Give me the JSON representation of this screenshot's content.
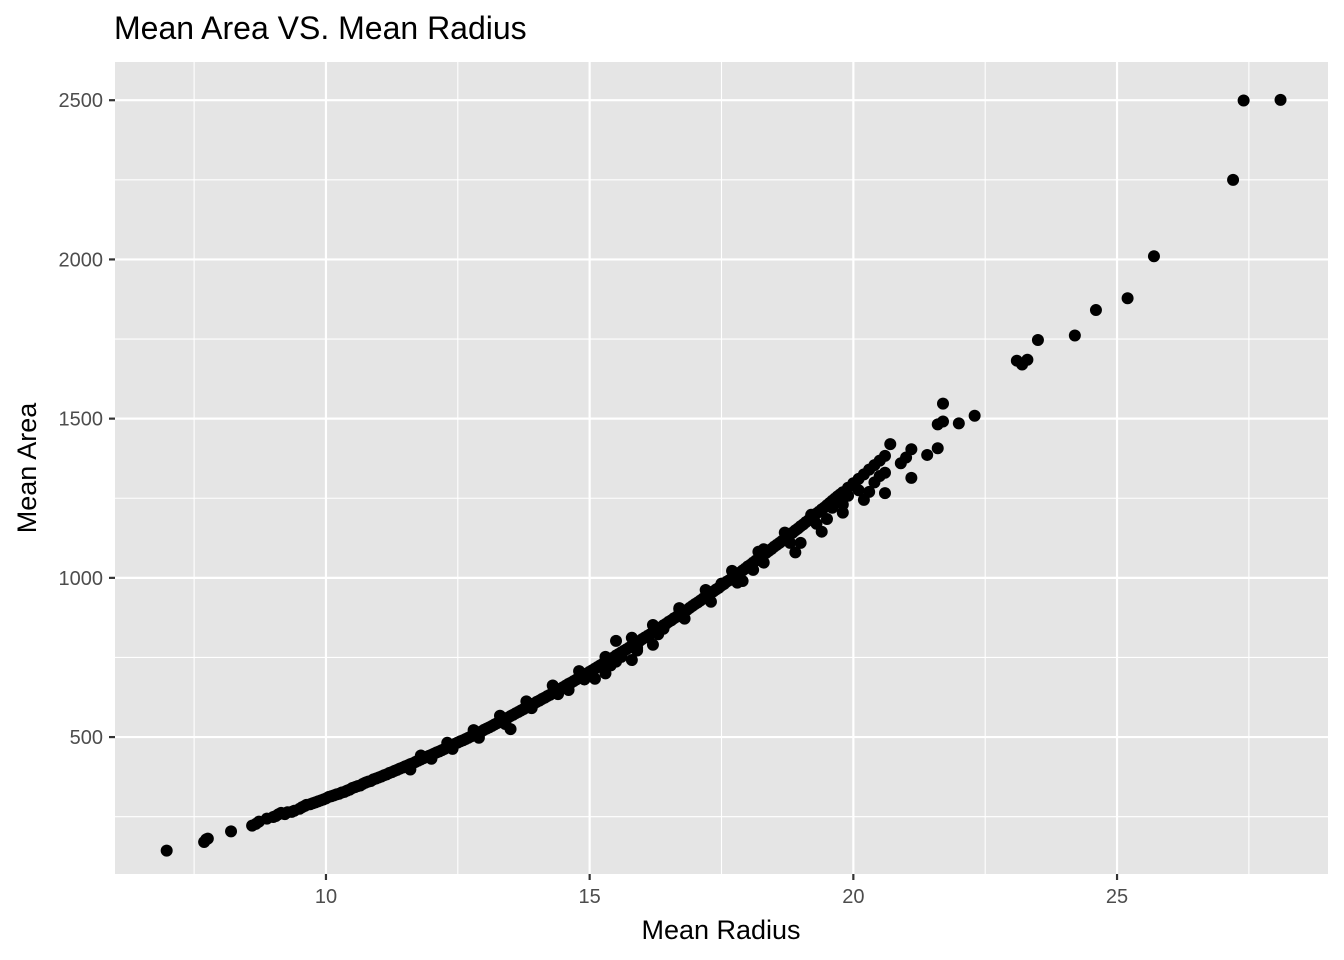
{
  "chart_data": {
    "type": "scatter",
    "title": "Mean Area VS. Mean Radius",
    "xlabel": "Mean Radius",
    "ylabel": "Mean Area",
    "xlim": [
      6.0,
      29.0
    ],
    "ylim": [
      70,
      2620
    ],
    "x_ticks": [
      10,
      15,
      20,
      25
    ],
    "y_ticks": [
      500,
      1000,
      1500,
      2000,
      2500
    ],
    "x_tick_labels": [
      "10",
      "15",
      "20",
      "25"
    ],
    "y_tick_labels": [
      "500",
      "1000",
      "1500",
      "2000",
      "2500"
    ],
    "grid": true,
    "background": "#e5e5e5",
    "point_color": "#000000",
    "points": [
      [
        6.98,
        143.5
      ],
      [
        7.69,
        170.4
      ],
      [
        7.73,
        178.8
      ],
      [
        7.76,
        181.0
      ],
      [
        8.2,
        203.9
      ],
      [
        8.6,
        221.8
      ],
      [
        8.67,
        227.2
      ],
      [
        8.73,
        234.3
      ],
      [
        8.88,
        244.0
      ],
      [
        9.0,
        249.1
      ],
      [
        9.1,
        257.8
      ],
      [
        9.27,
        264.0
      ],
      [
        9.4,
        268.8
      ],
      [
        9.5,
        275.0
      ],
      [
        9.6,
        284.0
      ],
      [
        9.7,
        289.0
      ],
      [
        9.8,
        295.0
      ],
      [
        9.9,
        301.0
      ],
      [
        10.0,
        307.3
      ],
      [
        10.1,
        314.0
      ],
      [
        10.2,
        320.0
      ],
      [
        10.3,
        326.0
      ],
      [
        10.4,
        332.0
      ],
      [
        10.5,
        340.0
      ],
      [
        10.6,
        346.0
      ],
      [
        10.7,
        353.0
      ],
      [
        10.8,
        360.0
      ],
      [
        10.9,
        367.0
      ],
      [
        11.0,
        373.0
      ],
      [
        11.1,
        380.0
      ],
      [
        11.2,
        387.0
      ],
      [
        11.3,
        394.0
      ],
      [
        11.4,
        401.0
      ],
      [
        11.5,
        408.0
      ],
      [
        11.6,
        415.0
      ],
      [
        11.7,
        422.0
      ],
      [
        11.8,
        430.0
      ],
      [
        11.9,
        437.0
      ],
      [
        12.0,
        444.0
      ],
      [
        12.1,
        452.0
      ],
      [
        12.2,
        459.0
      ],
      [
        12.3,
        467.0
      ],
      [
        12.4,
        475.0
      ],
      [
        12.5,
        483.0
      ],
      [
        12.6,
        490.0
      ],
      [
        12.7,
        498.0
      ],
      [
        12.8,
        506.0
      ],
      [
        12.9,
        514.0
      ],
      [
        13.0,
        523.0
      ],
      [
        13.1,
        531.0
      ],
      [
        13.2,
        540.0
      ],
      [
        13.3,
        548.0
      ],
      [
        13.4,
        557.0
      ],
      [
        13.5,
        566.0
      ],
      [
        13.6,
        575.0
      ],
      [
        13.7,
        584.0
      ],
      [
        13.8,
        593.0
      ],
      [
        13.9,
        602.0
      ],
      [
        14.0,
        611.0
      ],
      [
        14.1,
        620.0
      ],
      [
        14.2,
        629.0
      ],
      [
        14.3,
        638.0
      ],
      [
        14.4,
        648.0
      ],
      [
        14.5,
        657.0
      ],
      [
        14.6,
        667.0
      ],
      [
        14.7,
        676.0
      ],
      [
        14.8,
        686.0
      ],
      [
        14.9,
        696.0
      ],
      [
        15.0,
        705.0
      ],
      [
        15.1,
        715.0
      ],
      [
        15.2,
        725.0
      ],
      [
        15.3,
        735.0
      ],
      [
        15.4,
        745.0
      ],
      [
        15.5,
        756.0
      ],
      [
        15.6,
        766.0
      ],
      [
        15.7,
        776.0
      ],
      [
        15.8,
        787.0
      ],
      [
        15.9,
        797.0
      ],
      [
        16.0,
        808.0
      ],
      [
        16.1,
        818.0
      ],
      [
        16.2,
        829.0
      ],
      [
        16.3,
        840.0
      ],
      [
        16.4,
        851.0
      ],
      [
        16.5,
        862.0
      ],
      [
        16.6,
        873.0
      ],
      [
        16.7,
        884.0
      ],
      [
        16.8,
        895.0
      ],
      [
        16.9,
        906.0
      ],
      [
        17.0,
        918.0
      ],
      [
        17.1,
        929.0
      ],
      [
        17.2,
        941.0
      ],
      [
        17.3,
        952.0
      ],
      [
        17.4,
        964.0
      ],
      [
        17.5,
        976.0
      ],
      [
        17.6,
        988.0
      ],
      [
        17.7,
        999.0
      ],
      [
        17.8,
        1011.0
      ],
      [
        17.9,
        1023.0
      ],
      [
        18.0,
        1036.0
      ],
      [
        18.1,
        1048.0
      ],
      [
        18.2,
        1060.0
      ],
      [
        18.3,
        1073.0
      ],
      [
        18.4,
        1085.0
      ],
      [
        18.5,
        1098.0
      ],
      [
        18.6,
        1110.0
      ],
      [
        18.7,
        1123.0
      ],
      [
        18.8,
        1136.0
      ],
      [
        18.9,
        1149.0
      ],
      [
        19.0,
        1162.0
      ],
      [
        19.1,
        1175.0
      ],
      [
        19.2,
        1188.0
      ],
      [
        19.3,
        1202.0
      ],
      [
        19.4,
        1215.0
      ],
      [
        19.5,
        1228.0
      ],
      [
        19.6,
        1242.0
      ],
      [
        19.7,
        1256.0
      ],
      [
        19.8,
        1269.0
      ],
      [
        19.9,
        1283.0
      ],
      [
        20.0,
        1297.0
      ],
      [
        20.1,
        1311.0
      ],
      [
        20.2,
        1325.0
      ],
      [
        20.3,
        1340.0
      ],
      [
        20.4,
        1354.0
      ],
      [
        20.5,
        1368.0
      ],
      [
        20.6,
        1383.0
      ],
      [
        10.05,
        312.0
      ],
      [
        10.25,
        322.0
      ],
      [
        10.45,
        335.0
      ],
      [
        10.65,
        348.0
      ],
      [
        10.85,
        362.0
      ],
      [
        11.05,
        376.0
      ],
      [
        11.25,
        390.0
      ],
      [
        11.45,
        404.0
      ],
      [
        11.65,
        418.0
      ],
      [
        11.85,
        434.0
      ],
      [
        12.05,
        448.0
      ],
      [
        12.25,
        463.0
      ],
      [
        12.45,
        479.0
      ],
      [
        12.65,
        494.0
      ],
      [
        12.85,
        510.0
      ],
      [
        13.05,
        527.0
      ],
      [
        13.25,
        544.0
      ],
      [
        13.45,
        561.0
      ],
      [
        13.65,
        579.0
      ],
      [
        13.85,
        597.0
      ],
      [
        14.05,
        615.0
      ],
      [
        14.25,
        633.0
      ],
      [
        14.45,
        652.0
      ],
      [
        14.65,
        671.0
      ],
      [
        14.85,
        690.0
      ],
      [
        15.05,
        710.0
      ],
      [
        15.25,
        730.0
      ],
      [
        15.45,
        750.0
      ],
      [
        15.65,
        771.0
      ],
      [
        15.85,
        792.0
      ],
      [
        16.05,
        813.0
      ],
      [
        16.25,
        834.0
      ],
      [
        16.45,
        856.0
      ],
      [
        16.65,
        878.0
      ],
      [
        16.85,
        900.0
      ],
      [
        17.05,
        923.0
      ],
      [
        17.25,
        946.0
      ],
      [
        17.45,
        969.0
      ],
      [
        17.65,
        993.0
      ],
      [
        17.85,
        1017.0
      ],
      [
        18.05,
        1041.0
      ],
      [
        18.25,
        1066.0
      ],
      [
        18.45,
        1091.0
      ],
      [
        18.65,
        1116.0
      ],
      [
        18.85,
        1142.0
      ],
      [
        19.05,
        1168.0
      ],
      [
        19.25,
        1195.0
      ],
      [
        19.45,
        1221.0
      ],
      [
        19.65,
        1249.0
      ],
      [
        9.15,
        262.0
      ],
      [
        9.35,
        265.0
      ],
      [
        9.55,
        280.0
      ],
      [
        9.75,
        292.0
      ],
      [
        9.95,
        304.0
      ],
      [
        9.05,
        252.0
      ],
      [
        9.22,
        258.0
      ],
      [
        9.63,
        287.0
      ],
      [
        9.85,
        298.0
      ],
      [
        10.15,
        317.0
      ],
      [
        10.35,
        328.0
      ],
      [
        10.55,
        343.0
      ],
      [
        10.75,
        357.0
      ],
      [
        10.95,
        370.0
      ],
      [
        11.15,
        383.0
      ],
      [
        11.35,
        397.0
      ],
      [
        11.55,
        411.0
      ],
      [
        11.75,
        426.0
      ],
      [
        11.95,
        441.0
      ],
      [
        12.15,
        455.0
      ],
      [
        12.35,
        471.0
      ],
      [
        12.55,
        487.0
      ],
      [
        12.75,
        502.0
      ],
      [
        12.95,
        518.0
      ],
      [
        13.15,
        535.0
      ],
      [
        13.35,
        552.0
      ],
      [
        13.55,
        570.0
      ],
      [
        13.75,
        588.0
      ],
      [
        13.95,
        606.0
      ],
      [
        14.15,
        624.0
      ],
      [
        14.35,
        643.0
      ],
      [
        14.55,
        662.0
      ],
      [
        14.75,
        681.0
      ],
      [
        14.95,
        700.0
      ],
      [
        15.15,
        720.0
      ],
      [
        15.35,
        740.0
      ],
      [
        15.55,
        761.0
      ],
      [
        15.75,
        781.0
      ],
      [
        15.95,
        802.0
      ],
      [
        16.15,
        823.0
      ],
      [
        16.35,
        845.0
      ],
      [
        16.55,
        867.0
      ],
      [
        16.75,
        889.0
      ],
      [
        16.95,
        912.0
      ],
      [
        17.15,
        935.0
      ],
      [
        17.35,
        958.0
      ],
      [
        17.55,
        981.0
      ],
      [
        17.75,
        1005.0
      ],
      [
        17.95,
        1029.0
      ],
      [
        18.15,
        1054.0
      ],
      [
        18.35,
        1079.0
      ],
      [
        18.55,
        1104.0
      ],
      [
        18.75,
        1129.0
      ],
      [
        18.95,
        1155.0
      ],
      [
        19.15,
        1181.0
      ],
      [
        19.35,
        1208.0
      ],
      [
        19.55,
        1235.0
      ],
      [
        19.75,
        1262.0
      ],
      [
        11.6,
        398.0
      ],
      [
        12.0,
        432.0
      ],
      [
        12.4,
        463.0
      ],
      [
        12.9,
        498.0
      ],
      [
        13.4,
        541.0
      ],
      [
        13.9,
        591.0
      ],
      [
        14.4,
        635.0
      ],
      [
        14.9,
        681.0
      ],
      [
        15.4,
        725.0
      ],
      [
        15.9,
        780.0
      ],
      [
        16.3,
        823.0
      ],
      [
        16.8,
        872.0
      ],
      [
        17.3,
        925.0
      ],
      [
        17.8,
        985.0
      ],
      [
        18.3,
        1048.0
      ],
      [
        18.8,
        1110.0
      ],
      [
        19.3,
        1170.0
      ],
      [
        19.8,
        1230.0
      ],
      [
        11.8,
        442.0
      ],
      [
        12.3,
        482.0
      ],
      [
        12.8,
        522.0
      ],
      [
        13.3,
        567.0
      ],
      [
        13.8,
        612.0
      ],
      [
        14.3,
        662.0
      ],
      [
        14.8,
        707.0
      ],
      [
        15.3,
        752.0
      ],
      [
        15.8,
        812.0
      ],
      [
        16.2,
        852.0
      ],
      [
        16.7,
        902.0
      ],
      [
        17.2,
        962.0
      ],
      [
        17.7,
        1022.0
      ],
      [
        18.2,
        1082.0
      ],
      [
        18.7,
        1142.0
      ],
      [
        19.2,
        1198.0
      ],
      [
        13.5,
        525.0
      ],
      [
        14.6,
        648.0
      ],
      [
        15.1,
        683.0
      ],
      [
        15.3,
        700.0
      ],
      [
        15.5,
        737.0
      ],
      [
        15.5,
        802.0
      ],
      [
        15.6,
        752.0
      ],
      [
        15.8,
        742.0
      ],
      [
        15.9,
        772.0
      ],
      [
        16.2,
        790.0
      ],
      [
        16.7,
        905.0
      ],
      [
        16.4,
        840.0
      ],
      [
        17.5,
        982.0
      ],
      [
        17.9,
        990.0
      ],
      [
        18.1,
        1025.0
      ],
      [
        18.3,
        1090.0
      ],
      [
        18.9,
        1080.0
      ],
      [
        19.0,
        1110.0
      ],
      [
        19.4,
        1145.0
      ],
      [
        19.5,
        1185.0
      ],
      [
        19.6,
        1220.0
      ],
      [
        19.8,
        1205.0
      ],
      [
        19.9,
        1258.0
      ],
      [
        20.1,
        1275.0
      ],
      [
        20.2,
        1245.0
      ],
      [
        20.3,
        1270.0
      ],
      [
        20.4,
        1300.0
      ],
      [
        20.5,
        1320.0
      ],
      [
        20.6,
        1266.0
      ],
      [
        20.6,
        1330.0
      ],
      [
        20.7,
        1420.0
      ],
      [
        20.9,
        1360.0
      ],
      [
        21.0,
        1378.0
      ],
      [
        21.1,
        1404.0
      ],
      [
        21.1,
        1314.0
      ],
      [
        21.4,
        1386.0
      ],
      [
        21.6,
        1482.0
      ],
      [
        21.6,
        1407.0
      ],
      [
        21.7,
        1547.0
      ],
      [
        21.7,
        1491.0
      ],
      [
        22.0,
        1485.0
      ],
      [
        22.3,
        1509.0
      ],
      [
        23.1,
        1682.0
      ],
      [
        23.2,
        1670.0
      ],
      [
        23.3,
        1685.0
      ],
      [
        23.5,
        1747.0
      ],
      [
        24.2,
        1761.0
      ],
      [
        24.6,
        1841.0
      ],
      [
        25.2,
        1878.0
      ],
      [
        25.7,
        2010.0
      ],
      [
        27.2,
        2250.0
      ],
      [
        27.4,
        2499.0
      ],
      [
        28.1,
        2501.0
      ]
    ]
  }
}
